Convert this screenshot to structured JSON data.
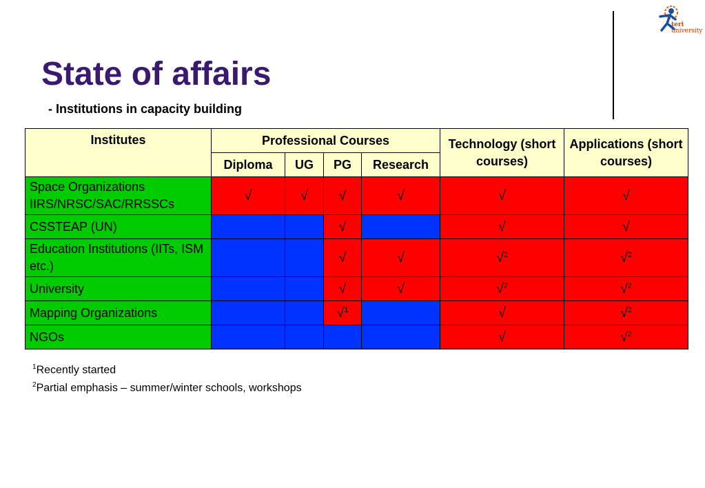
{
  "title": "State of affairs",
  "subtitle": "- Institutions in capacity building",
  "logo": {
    "brand": "teri",
    "word": "university"
  },
  "table": {
    "header": {
      "institutes": "Institutes",
      "professional": "Professional Courses",
      "technology": "Technology (short courses)",
      "applications": "Applications (short courses)",
      "diploma": "Diploma",
      "ug": "UG",
      "pg": "PG",
      "research": "Research"
    },
    "rows": [
      {
        "label": "Space Organizations IIRS/NRSC/SAC/RRSSCs",
        "cells": [
          {
            "mark": "√",
            "sup": "",
            "color": "#ff0000"
          },
          {
            "mark": "√",
            "sup": "",
            "color": "#ff0000"
          },
          {
            "mark": "√",
            "sup": "",
            "color": "#ff0000"
          },
          {
            "mark": "√",
            "sup": "",
            "color": "#ff0000"
          },
          {
            "mark": "√",
            "sup": "",
            "color": "#ff0000"
          },
          {
            "mark": "√",
            "sup": "",
            "color": "#ff0000"
          }
        ]
      },
      {
        "label": "CSSTEAP (UN)",
        "cells": [
          {
            "mark": "",
            "sup": "",
            "color": "#0033ff"
          },
          {
            "mark": "",
            "sup": "",
            "color": "#0033ff"
          },
          {
            "mark": "√",
            "sup": "",
            "color": "#ff0000"
          },
          {
            "mark": "",
            "sup": "",
            "color": "#0033ff"
          },
          {
            "mark": "√",
            "sup": "",
            "color": "#ff0000"
          },
          {
            "mark": "√",
            "sup": "",
            "color": "#ff0000"
          }
        ]
      },
      {
        "label": "Education Institutions (IITs, ISM etc.)",
        "cells": [
          {
            "mark": "",
            "sup": "",
            "color": "#0033ff"
          },
          {
            "mark": "",
            "sup": "",
            "color": "#0033ff"
          },
          {
            "mark": "√",
            "sup": "",
            "color": "#ff0000"
          },
          {
            "mark": "√",
            "sup": "",
            "color": "#ff0000"
          },
          {
            "mark": "√",
            "sup": "2",
            "color": "#ff0000"
          },
          {
            "mark": "√",
            "sup": "2",
            "color": "#ff0000"
          }
        ]
      },
      {
        "label": "University",
        "cells": [
          {
            "mark": "",
            "sup": "",
            "color": "#0033ff"
          },
          {
            "mark": "",
            "sup": "",
            "color": "#0033ff"
          },
          {
            "mark": "√",
            "sup": "",
            "color": "#ff0000"
          },
          {
            "mark": "√",
            "sup": "",
            "color": "#ff0000"
          },
          {
            "mark": "√",
            "sup": "2",
            "color": "#ff0000"
          },
          {
            "mark": "√",
            "sup": "2",
            "color": "#ff0000"
          }
        ]
      },
      {
        "label": "Mapping Organizations",
        "cells": [
          {
            "mark": "",
            "sup": "",
            "color": "#0033ff"
          },
          {
            "mark": "",
            "sup": "",
            "color": "#0033ff"
          },
          {
            "mark": "√",
            "sup": "1",
            "color": "#ff0000"
          },
          {
            "mark": "",
            "sup": "",
            "color": "#0033ff"
          },
          {
            "mark": "√",
            "sup": "",
            "color": "#ff0000"
          },
          {
            "mark": "√",
            "sup": "2",
            "color": "#ff0000"
          }
        ]
      },
      {
        "label": "NGOs",
        "cells": [
          {
            "mark": "",
            "sup": "",
            "color": "#0033ff"
          },
          {
            "mark": "",
            "sup": "",
            "color": "#0033ff"
          },
          {
            "mark": "",
            "sup": "",
            "color": "#0033ff"
          },
          {
            "mark": "",
            "sup": "",
            "color": "#0033ff"
          },
          {
            "mark": "√",
            "sup": "",
            "color": "#ff0000"
          },
          {
            "mark": "√",
            "sup": "2",
            "color": "#ff0000"
          }
        ]
      }
    ]
  },
  "footnotes": [
    {
      "num": "1",
      "text": "Recently started"
    },
    {
      "num": "2",
      "text": "Partial emphasis – summer/winter schools, workshops"
    }
  ]
}
